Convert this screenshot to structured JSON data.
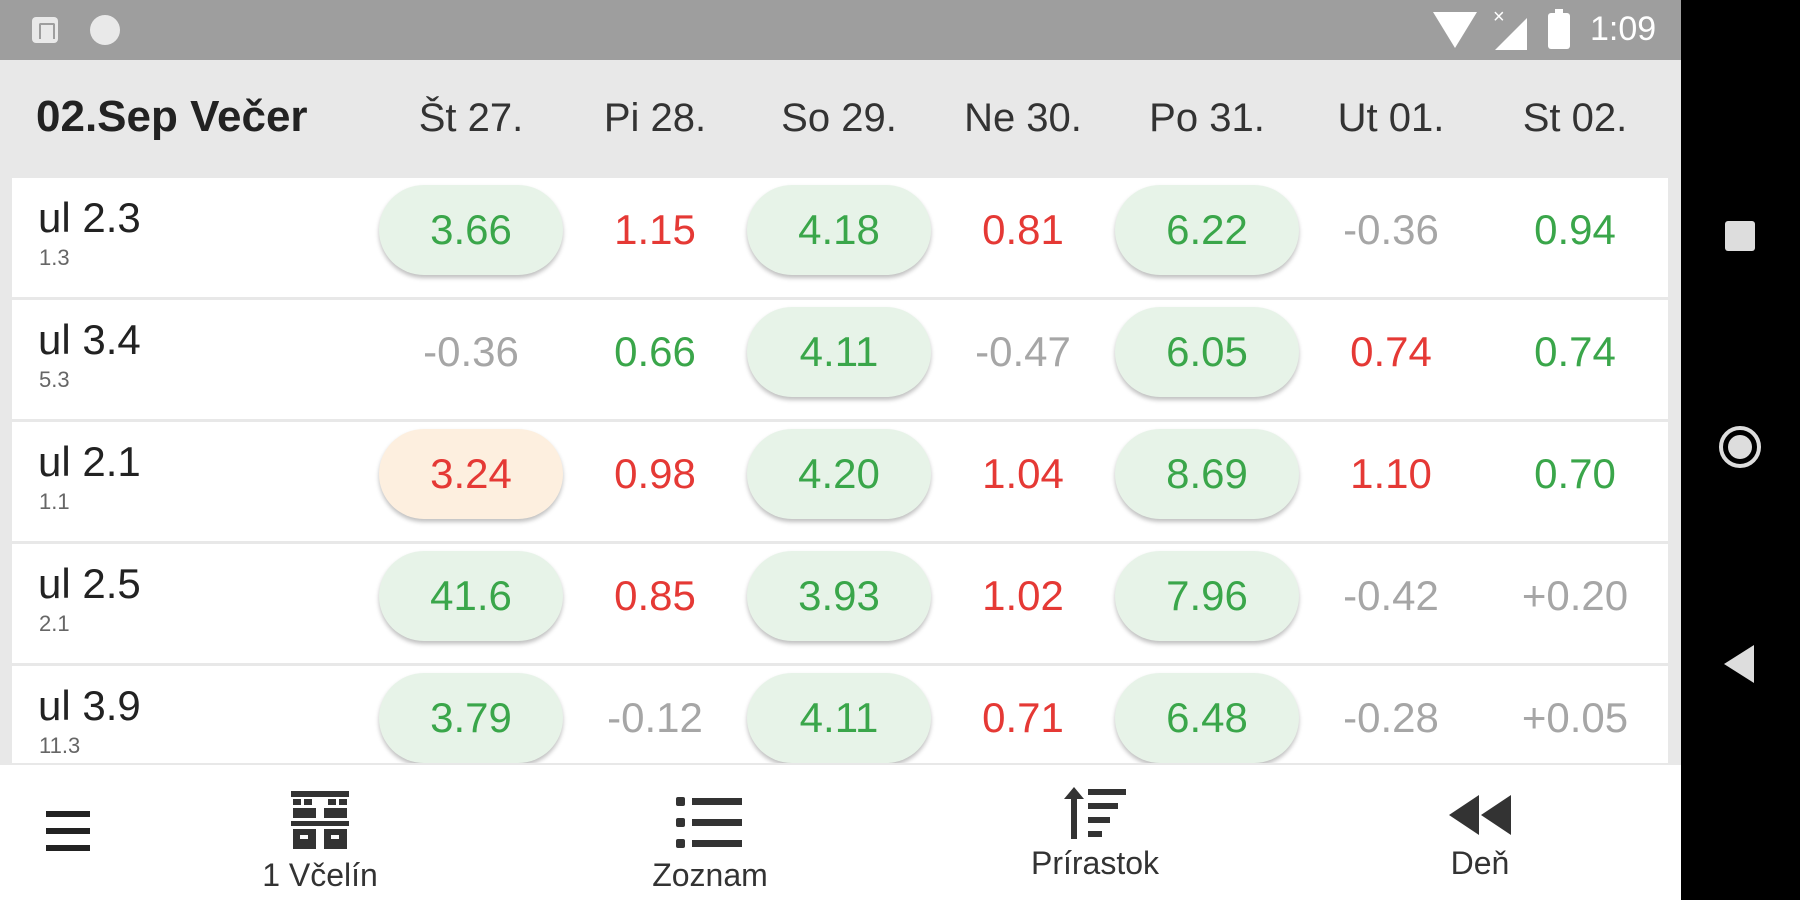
{
  "status_bar": {
    "time": "1:09",
    "signal_x": "×"
  },
  "header": {
    "title": "02.Sep Večer",
    "days": [
      "Št 27.",
      "Pi 28.",
      "So 29.",
      "Ne 30.",
      "Po 31.",
      "Ut 01.",
      "St 02."
    ]
  },
  "colors": {
    "positive": "#3aa64a",
    "negative": "#e53935",
    "neutral": "#a6a6a6",
    "pill_green": "#e7f3e8",
    "pill_orange": "#fdefdf"
  },
  "rows": [
    {
      "name": "ul 2.3",
      "sub": "1.3",
      "cells": [
        {
          "v": "3.66",
          "c": "green",
          "pill": "green"
        },
        {
          "v": "1.15",
          "c": "red",
          "pill": null
        },
        {
          "v": "4.18",
          "c": "green",
          "pill": "green"
        },
        {
          "v": "0.81",
          "c": "red",
          "pill": null
        },
        {
          "v": "6.22",
          "c": "green",
          "pill": "green"
        },
        {
          "v": "-0.36",
          "c": "gray",
          "pill": null
        },
        {
          "v": "0.94",
          "c": "green",
          "pill": null
        }
      ]
    },
    {
      "name": "ul 3.4",
      "sub": "5.3",
      "cells": [
        {
          "v": "-0.36",
          "c": "gray",
          "pill": null
        },
        {
          "v": "0.66",
          "c": "green",
          "pill": null
        },
        {
          "v": "4.11",
          "c": "green",
          "pill": "green"
        },
        {
          "v": "-0.47",
          "c": "gray",
          "pill": null
        },
        {
          "v": "6.05",
          "c": "green",
          "pill": "green"
        },
        {
          "v": "0.74",
          "c": "red",
          "pill": null
        },
        {
          "v": "0.74",
          "c": "green",
          "pill": null
        }
      ]
    },
    {
      "name": "ul 2.1",
      "sub": "1.1",
      "cells": [
        {
          "v": "3.24",
          "c": "red",
          "pill": "orange"
        },
        {
          "v": "0.98",
          "c": "red",
          "pill": null
        },
        {
          "v": "4.20",
          "c": "green",
          "pill": "green"
        },
        {
          "v": "1.04",
          "c": "red",
          "pill": null
        },
        {
          "v": "8.69",
          "c": "green",
          "pill": "green"
        },
        {
          "v": "1.10",
          "c": "red",
          "pill": null
        },
        {
          "v": "0.70",
          "c": "green",
          "pill": null
        }
      ]
    },
    {
      "name": "ul 2.5",
      "sub": "2.1",
      "cells": [
        {
          "v": "41.6",
          "c": "green",
          "pill": "green"
        },
        {
          "v": "0.85",
          "c": "red",
          "pill": null
        },
        {
          "v": "3.93",
          "c": "green",
          "pill": "green"
        },
        {
          "v": "1.02",
          "c": "red",
          "pill": null
        },
        {
          "v": "7.96",
          "c": "green",
          "pill": "green"
        },
        {
          "v": "-0.42",
          "c": "gray",
          "pill": null
        },
        {
          "v": "+0.20",
          "c": "gray",
          "pill": null
        }
      ]
    },
    {
      "name": "ul 3.9",
      "sub": "11.3",
      "cells": [
        {
          "v": "3.79",
          "c": "green",
          "pill": "green"
        },
        {
          "v": "-0.12",
          "c": "gray",
          "pill": null
        },
        {
          "v": "4.11",
          "c": "green",
          "pill": "green"
        },
        {
          "v": "0.71",
          "c": "red",
          "pill": null
        },
        {
          "v": "6.48",
          "c": "green",
          "pill": "green"
        },
        {
          "v": "-0.28",
          "c": "gray",
          "pill": null
        },
        {
          "v": "+0.05",
          "c": "gray",
          "pill": null
        }
      ]
    }
  ],
  "bottom_nav": {
    "menu_icon": "hamburger-menu-icon",
    "items": [
      {
        "label": "1 Včelín",
        "icon": "apiary-icon"
      },
      {
        "label": "Zoznam",
        "icon": "list-icon"
      },
      {
        "label": "Prírastok",
        "icon": "sort-increment-icon"
      },
      {
        "label": "Deň",
        "icon": "rewind-icon"
      }
    ]
  }
}
